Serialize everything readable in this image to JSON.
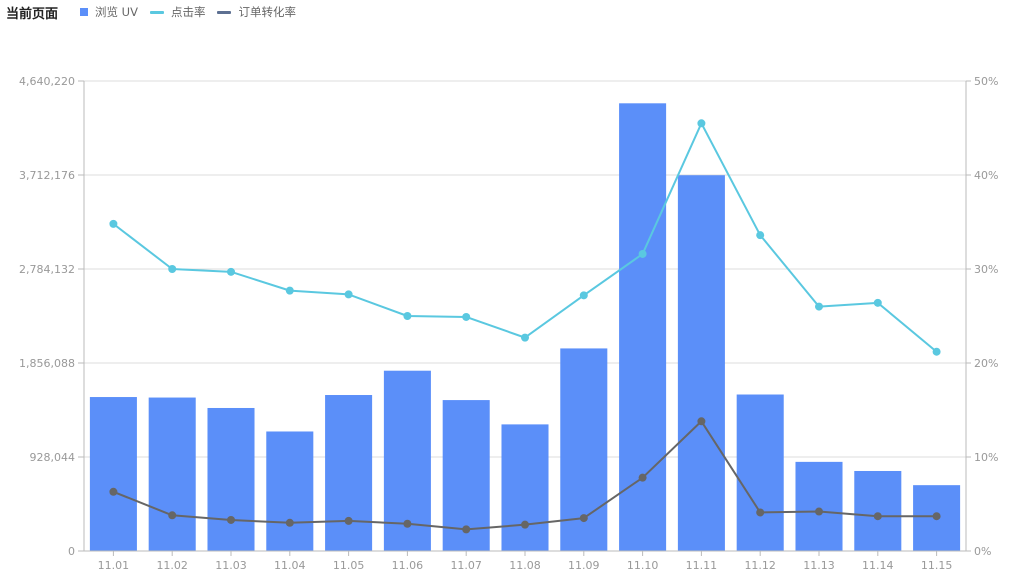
{
  "page_title": "当前页面",
  "legend": [
    {
      "label": "浏览 UV",
      "color": "#5B8FF9",
      "kind": "bar"
    },
    {
      "label": "点击率",
      "color": "#5AC8E0",
      "kind": "line"
    },
    {
      "label": "订单转化率",
      "color": "#5D7092",
      "kind": "line"
    }
  ],
  "chart_data": {
    "type": "bar",
    "categories": [
      "11.01",
      "11.02",
      "11.03",
      "11.04",
      "11.05",
      "11.06",
      "11.07",
      "11.08",
      "11.09",
      "11.10",
      "11.11",
      "11.12",
      "11.13",
      "11.14",
      "11.15"
    ],
    "series": [
      {
        "name": "浏览 UV",
        "type": "bar",
        "axis": "left",
        "color": "#5B8FF9",
        "values": [
          1520000,
          1515000,
          1412000,
          1180000,
          1540000,
          1780000,
          1490000,
          1250000,
          2000000,
          4420000,
          3710000,
          1545000,
          880000,
          790000,
          650000
        ]
      },
      {
        "name": "点击率",
        "type": "line",
        "axis": "right",
        "unit": "%",
        "color": "#5AC8E0",
        "values": [
          34.8,
          30.0,
          29.7,
          27.7,
          27.3,
          25.0,
          24.9,
          22.7,
          27.2,
          31.6,
          45.5,
          33.6,
          26.0,
          26.4,
          21.2
        ]
      },
      {
        "name": "订单转化率",
        "type": "line",
        "axis": "right",
        "unit": "%",
        "color": "#666666",
        "values": [
          6.3,
          3.8,
          3.3,
          3.0,
          3.2,
          2.9,
          2.3,
          2.8,
          3.5,
          7.8,
          13.8,
          4.1,
          4.2,
          3.7,
          3.7
        ]
      }
    ],
    "y_left": {
      "ticks": [
        "0",
        "928,044",
        "1,856,088",
        "2,784,132",
        "3,712,176",
        "4,640,220"
      ],
      "ylim": [
        0,
        4640220
      ]
    },
    "y_right": {
      "ticks": [
        "0%",
        "10%",
        "20%",
        "30%",
        "40%",
        "50%"
      ],
      "ylim": [
        0,
        50
      ]
    },
    "grid": true,
    "legend_position": "top-left"
  }
}
